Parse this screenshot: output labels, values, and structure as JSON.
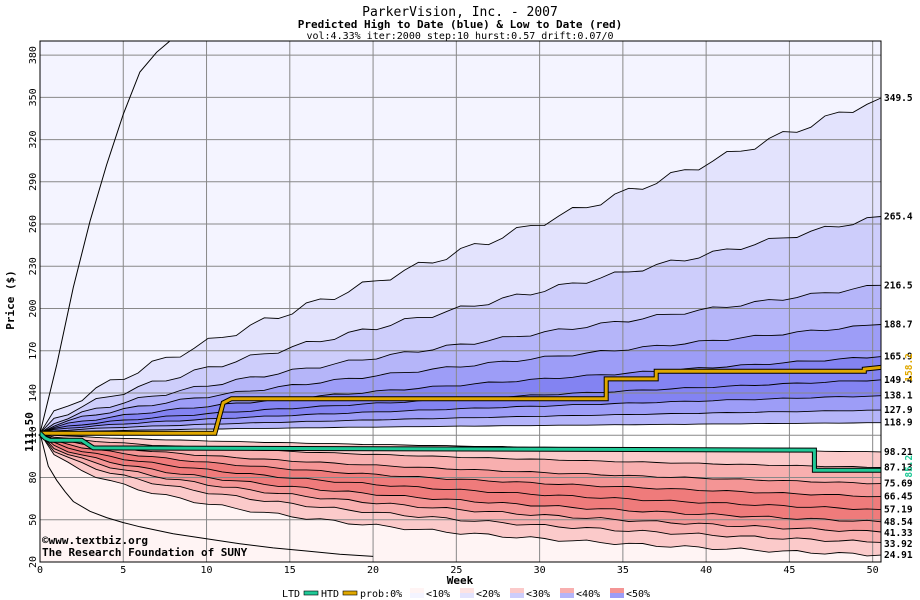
{
  "chart_data": {
    "type": "area",
    "title": "ParkerVision, Inc. - 2007",
    "subtitle": "Predicted High to Date (blue) &  Low to Date (red)",
    "params": "vol:4.33% iter:2000 step:10 hurst:0.57 drift:0.07/0",
    "xlabel": "Week",
    "ylabel": "Price ($)",
    "xlim": [
      0,
      50.5
    ],
    "ylim": [
      20,
      390
    ],
    "xticks": [
      0,
      5,
      10,
      15,
      20,
      25,
      30,
      35,
      40,
      45,
      50
    ],
    "yticks": [
      20,
      50,
      80,
      110,
      140,
      170,
      200,
      230,
      260,
      290,
      320,
      350,
      380
    ],
    "grid": true,
    "start_price": "111.50",
    "colors": {
      "blue_ramp": [
        "#f4f4ff",
        "#e3e3fd",
        "#cdcdfb",
        "#b5b5f9",
        "#9d9df7",
        "#8383f2"
      ],
      "red_ramp": [
        "#fff4f4",
        "#fde3e3",
        "#fbcaca",
        "#f8afaf",
        "#f49595",
        "#ef7b7b"
      ],
      "htd_line": "#e0a800",
      "ltd_line": "#20c997"
    },
    "high_quantiles": [
      {
        "label": "349.5",
        "end": 349.5
      },
      {
        "label": "265.4",
        "end": 265.4
      },
      {
        "label": "216.5",
        "end": 216.5
      },
      {
        "label": "188.7",
        "end": 188.7
      },
      {
        "label": "165.9",
        "end": 165.9
      },
      {
        "label": "149.4",
        "end": 149.4
      },
      {
        "label": "138.1",
        "end": 138.1
      },
      {
        "label": "127.9",
        "end": 127.9
      },
      {
        "label": "118.9",
        "end": 118.9
      }
    ],
    "low_quantiles": [
      {
        "label": "98.21",
        "end": 98.21
      },
      {
        "label": "87.13",
        "end": 87.13
      },
      {
        "label": "75.69",
        "end": 75.69
      },
      {
        "label": "66.45",
        "end": 66.45
      },
      {
        "label": "57.19",
        "end": 57.19
      },
      {
        "label": "48.54",
        "end": 48.54
      },
      {
        "label": "41.33",
        "end": 41.33
      },
      {
        "label": "33.92",
        "end": 33.92
      },
      {
        "label": "24.91",
        "end": 24.91
      }
    ],
    "htd_series": {
      "name": "HTD",
      "end_label": "158.2",
      "points": [
        [
          0,
          111.5
        ],
        [
          10.5,
          111.5
        ],
        [
          11,
          133
        ],
        [
          11.5,
          136
        ],
        [
          34,
          136
        ],
        [
          34,
          150
        ],
        [
          37,
          150
        ],
        [
          37,
          155.5
        ],
        [
          49.5,
          155.5
        ],
        [
          49.5,
          157
        ],
        [
          50.5,
          158.2
        ]
      ]
    },
    "ltd_series": {
      "name": "LTD",
      "end_label": "85.2",
      "points": [
        [
          0,
          111.5
        ],
        [
          0.3,
          108
        ],
        [
          0.6,
          106.5
        ],
        [
          2.5,
          106.5
        ],
        [
          3.2,
          101
        ],
        [
          46.5,
          99.5
        ],
        [
          46.5,
          85.2
        ],
        [
          50.5,
          85.2
        ]
      ]
    },
    "upper_extreme": [
      [
        0,
        111.5
      ],
      [
        1,
        160
      ],
      [
        2,
        215
      ],
      [
        3,
        262
      ],
      [
        4,
        302
      ],
      [
        5,
        338
      ],
      [
        6,
        368
      ],
      [
        7,
        382
      ],
      [
        7.8,
        390
      ]
    ],
    "lower_extreme": [
      [
        0,
        111.5
      ],
      [
        0.5,
        88
      ],
      [
        1,
        78
      ],
      [
        1.5,
        70
      ],
      [
        2,
        63
      ],
      [
        3,
        56
      ],
      [
        4,
        51.5
      ],
      [
        5,
        48
      ],
      [
        6,
        45
      ],
      [
        8,
        40
      ],
      [
        10,
        36.5
      ],
      [
        12,
        33
      ],
      [
        14,
        30
      ],
      [
        16,
        27.8
      ],
      [
        18,
        25.5
      ],
      [
        20,
        24
      ]
    ],
    "legend": {
      "items": [
        "LTD",
        "HTD",
        "prob:0%",
        "<10%",
        "<20%",
        "<30%",
        "<40%",
        "<50%"
      ]
    },
    "watermark": {
      "line1": "©www.textbiz.org",
      "line2": "The Research Foundation of SUNY"
    }
  }
}
